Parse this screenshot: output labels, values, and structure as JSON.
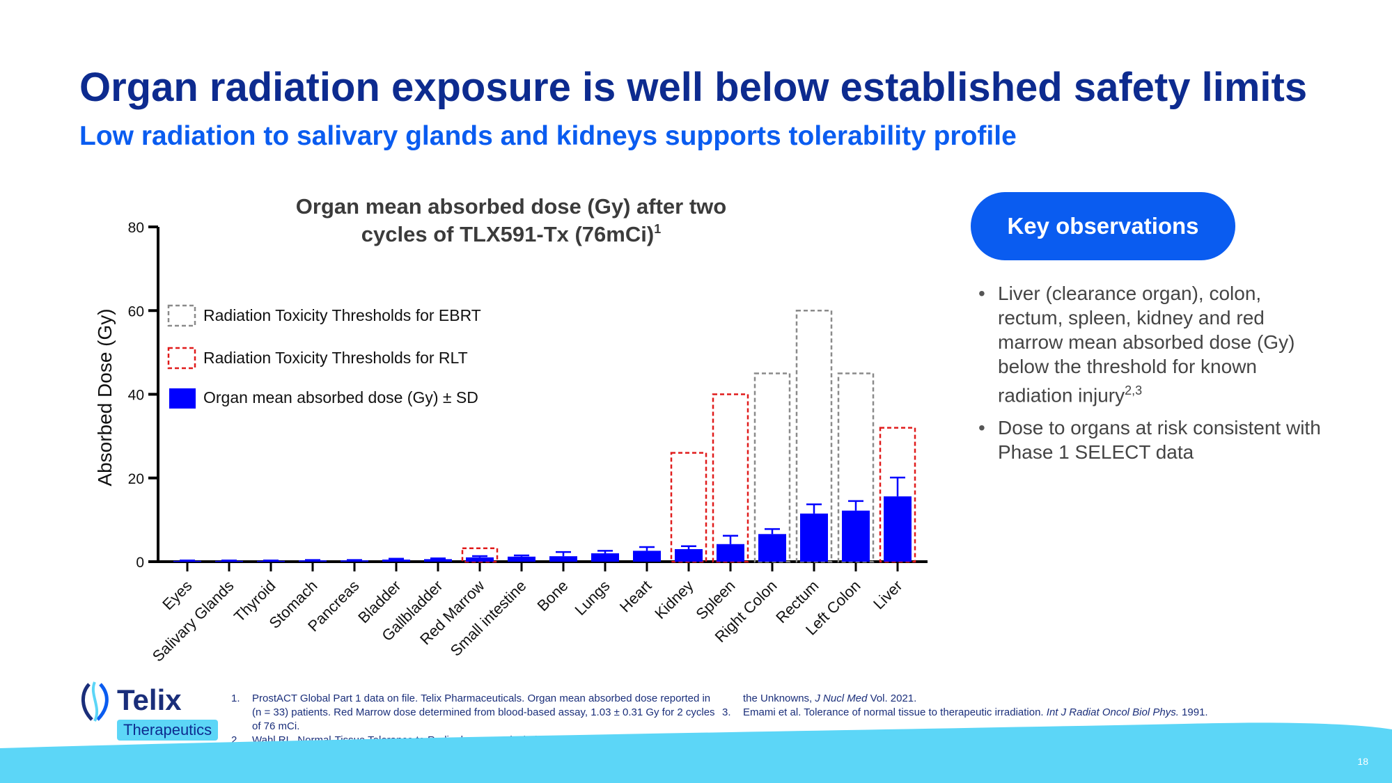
{
  "header": {
    "title": "Organ radiation exposure is well below established safety limits",
    "subtitle": "Low radiation to salivary glands and kidneys supports tolerability profile"
  },
  "chart_data": {
    "type": "bar",
    "title_line1": "Organ mean absorbed dose (Gy) after two",
    "title_line2": "cycles of TLX591-Tx (76mCi)",
    "title_sup": "1",
    "ylabel": "Absorbed Dose (Gy)",
    "xlabel": "",
    "ylim": [
      0,
      80
    ],
    "yticks": [
      0,
      20,
      40,
      60,
      80
    ],
    "categories": [
      "Eyes",
      "Salivary Glands",
      "Thyroid",
      "Stomach",
      "Pancreas",
      "Bladder",
      "Gallbladder",
      "Red Marrow",
      "Small intestine",
      "Bone",
      "Lungs",
      "Heart",
      "Kidney",
      "Spleen",
      "Right Colon",
      "Rectum",
      "Left Colon",
      "Liver"
    ],
    "series": [
      {
        "name": "Organ mean absorbed dose (Gy) ± SD",
        "values": [
          0.2,
          0.2,
          0.2,
          0.3,
          0.3,
          0.5,
          0.6,
          1.03,
          1.2,
          1.3,
          2.0,
          2.6,
          3.0,
          4.2,
          6.6,
          11.5,
          12.2,
          15.6
        ],
        "sd": [
          0.1,
          0.1,
          0.1,
          0.1,
          0.1,
          0.2,
          0.2,
          0.31,
          0.3,
          1.0,
          0.6,
          0.9,
          0.7,
          2.0,
          1.2,
          2.2,
          2.3,
          4.5
        ]
      },
      {
        "name": "Radiation Toxicity Thresholds for EBRT",
        "values": [
          null,
          null,
          null,
          null,
          null,
          null,
          null,
          null,
          null,
          null,
          null,
          null,
          null,
          null,
          45,
          60,
          45,
          null
        ]
      },
      {
        "name": "Radiation Toxicity Thresholds for RLT",
        "values": [
          null,
          null,
          null,
          null,
          null,
          null,
          null,
          3.2,
          null,
          null,
          null,
          null,
          26,
          40,
          null,
          null,
          null,
          32
        ]
      }
    ],
    "legend": [
      {
        "label": "Radiation Toxicity Thresholds for EBRT",
        "color": "#8a8a8a",
        "style": "dashed"
      },
      {
        "label": "Radiation Toxicity Thresholds for RLT",
        "color": "#e01b1b",
        "style": "dashed"
      },
      {
        "label": "Organ mean absorbed dose (Gy) ± SD",
        "color": "#0000ff",
        "style": "solid"
      }
    ],
    "legend_position": "upper-left",
    "grid": false
  },
  "key_observations": {
    "label": "Key observations",
    "items": [
      {
        "text": "Liver (clearance organ), colon, rectum, spleen, kidney and red marrow mean absorbed dose (Gy) below the threshold for known radiation injury",
        "sup": "2,3"
      },
      {
        "text": "Dose to organs at risk consistent with Phase 1 SELECT data",
        "sup": ""
      }
    ]
  },
  "logo": {
    "name": "Telix",
    "tagline": "Therapeutics"
  },
  "footnotes": {
    "col1": [
      {
        "num": "1.",
        "text": "ProstACT Global Part 1 data on file. Telix Pharmaceuticals. Organ mean absorbed dose reported in (n = 33) patients. Red Marrow dose determined from blood-based assay, 1.03 ± 0.31 Gy for 2 cycles of 76 mCi."
      },
      {
        "num": "2.",
        "text": "Wahl RL, Normal-Tissue Tolerance to Radiopharmaceutical Therapies, the Knowns and"
      }
    ],
    "col2_cont_plain": "the Unknowns, ",
    "col2_cont_italic": "J Nucl Med",
    "col2_cont_end": " Vol. 2021.",
    "ref3_num": "3.",
    "ref3_plain": "Emami et al. Tolerance of normal tissue to therapeutic irradiation. ",
    "ref3_italic": "Int J Radiat Oncol Biol Phys.",
    "ref3_end": " 1991."
  },
  "page_number": "18",
  "colors": {
    "title": "#0d2b8f",
    "subtitle": "#0a5cf0",
    "bar": "#0000ff",
    "ebrt": "#8a8a8a",
    "rlt": "#e01b1b",
    "pill": "#0a5cf0",
    "wave": "#5cd6f7"
  }
}
